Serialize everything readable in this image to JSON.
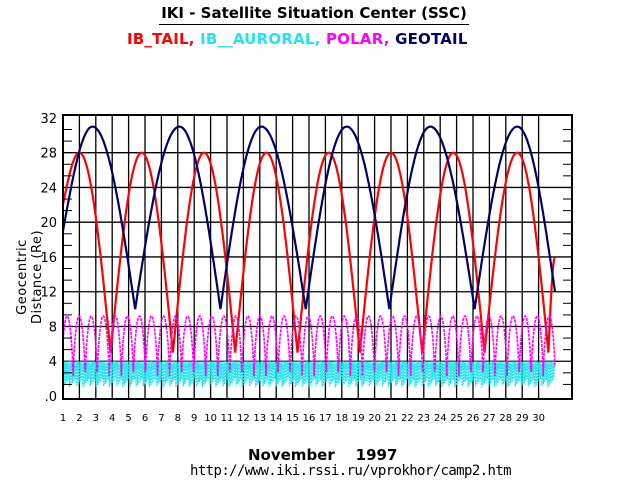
{
  "header": {
    "title": "IKI - Satellite Situation Center (SSC)"
  },
  "footer": {
    "month": "November",
    "year": "1997",
    "url": "http://www.iki.rssi.ru/vprokhor/camp2.htm"
  },
  "chart_data": {
    "type": "line",
    "title": "IKI - Satellite Situation Center (SSC)",
    "xlabel": "November    1997",
    "ylabel": "Geocentric Distance (Re)",
    "xlim": [
      1,
      32
    ],
    "ylim": [
      0,
      32
    ],
    "grid": true,
    "legend_placement": "top",
    "x_tick_labels": [
      "1",
      "2",
      "3",
      "4",
      "5",
      "6",
      "7",
      "8",
      "9",
      "10",
      "11",
      "12",
      "13",
      "14",
      "15",
      "16",
      "17",
      "18",
      "19",
      "20",
      "21",
      "22",
      "23",
      "24",
      "25",
      "26",
      "27",
      "28",
      "29",
      "30"
    ],
    "y_tick_labels": [
      {
        "value": 0,
        "label": ".0"
      },
      {
        "value": 4,
        "label": "4"
      },
      {
        "value": 8,
        "label": "8"
      },
      {
        "value": 12,
        "label": "12"
      },
      {
        "value": 16,
        "label": "16"
      },
      {
        "value": 20,
        "label": "20"
      },
      {
        "value": 24,
        "label": "24"
      },
      {
        "value": 28,
        "label": "28"
      },
      {
        "value": 32,
        "label": "32"
      }
    ],
    "series": [
      {
        "name": "IB_TAIL",
        "legend_label": "IB_TAIL,",
        "color": "#ff0000",
        "extrema_x": [
          1.0,
          2.0,
          3.9,
          5.8,
          7.7,
          9.6,
          11.5,
          13.4,
          15.3,
          17.2,
          19.1,
          21.0,
          22.9,
          24.8,
          26.7,
          28.7,
          30.6,
          31.0
        ],
        "extrema_y": [
          22,
          28,
          5,
          28,
          5,
          28,
          5,
          28,
          5,
          28,
          5,
          28,
          5,
          28,
          5,
          28,
          5,
          16
        ]
      },
      {
        "name": "IB__AURORAL",
        "legend_label": "IB__AURORAL,",
        "color": "#22e4f0",
        "range_min": 1.0,
        "range_max": 4.0,
        "period_days": 0.09,
        "x_start": 1.0,
        "x_end": 31.0
      },
      {
        "name": "POLAR",
        "legend_label": "POLAR,",
        "color": "#ff00ff",
        "range_min": 1.8,
        "range_max": 9.2,
        "period_days": 0.735,
        "first_peak_x": 1.25,
        "x_start": 1.0,
        "x_end": 31.0
      },
      {
        "name": "GEOTAIL",
        "legend_label": "GEOTAIL",
        "color": "#000066",
        "extrema_x": [
          1.0,
          2.8,
          5.4,
          8.1,
          10.6,
          13.1,
          15.8,
          18.3,
          20.9,
          23.4,
          26.1,
          28.7,
          31.0
        ],
        "extrema_y": [
          19,
          31,
          10,
          31,
          10,
          31,
          10,
          31,
          10,
          31,
          10,
          31,
          12
        ]
      }
    ]
  }
}
